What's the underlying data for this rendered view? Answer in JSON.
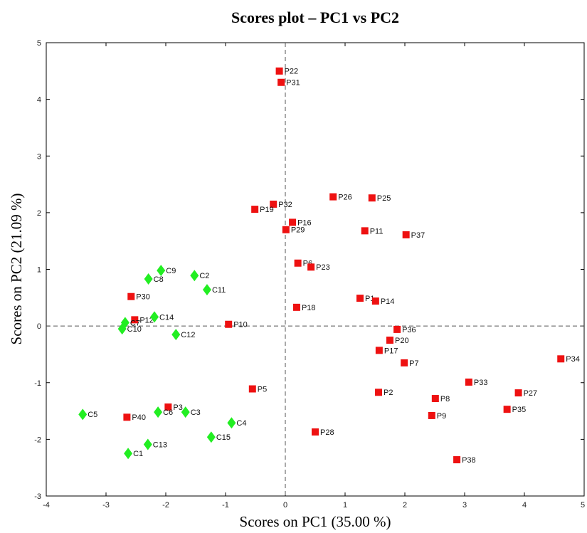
{
  "chart_data": {
    "type": "scatter",
    "title": "Scores plot – PC1 vs PC2",
    "x_label": "Scores on PC1 (35.00 %)",
    "y_label": "Scores on PC2 (21.09 %)",
    "xlim": [
      -4,
      5
    ],
    "ylim": [
      -3,
      5
    ],
    "xticks": [
      -4,
      -3,
      -2,
      -1,
      0,
      1,
      2,
      3,
      4,
      5
    ],
    "yticks": [
      -3,
      -2,
      -1,
      0,
      1,
      2,
      3,
      4,
      5
    ],
    "zero_lines": true,
    "series": [
      {
        "color": "#ee1111",
        "marker": "square",
        "labels": [
          "P22",
          "P31",
          "P32",
          "P19",
          "P26",
          "P25",
          "P16",
          "P29",
          "P11",
          "P37",
          "P6",
          "P23",
          "P1",
          "P14",
          "P18",
          "P10",
          "P36",
          "P20",
          "P17",
          "P7",
          "P34",
          "P33",
          "P27",
          "P2",
          "P8",
          "P35",
          "P9",
          "P38",
          "P28",
          "P5",
          "P3",
          "P40",
          "P30",
          "P12"
        ],
        "x": [
          -0.1,
          -0.07,
          -0.2,
          -0.51,
          0.8,
          1.45,
          0.12,
          0.01,
          1.33,
          2.02,
          0.21,
          0.43,
          1.25,
          1.51,
          0.19,
          -0.95,
          1.87,
          1.75,
          1.57,
          1.99,
          4.61,
          3.07,
          3.9,
          1.56,
          2.51,
          3.71,
          2.45,
          2.87,
          0.5,
          -0.55,
          -1.96,
          -2.65,
          -2.58,
          -2.52
        ],
        "y": [
          4.5,
          4.3,
          2.15,
          2.06,
          2.28,
          2.26,
          1.83,
          1.7,
          1.68,
          1.61,
          1.11,
          1.04,
          0.49,
          0.44,
          0.33,
          0.03,
          -0.06,
          -0.25,
          -0.43,
          -0.65,
          -0.58,
          -0.99,
          -1.18,
          -1.17,
          -1.28,
          -1.47,
          -1.58,
          -2.36,
          -1.87,
          -1.11,
          -1.43,
          -1.61,
          0.52,
          0.11
        ]
      },
      {
        "color": "#22ee22",
        "marker": "diamond",
        "labels": [
          "C9",
          "C8",
          "C2",
          "C11",
          "C14",
          "C7",
          "C10",
          "C12",
          "C5",
          "C6",
          "C3",
          "C4",
          "C15",
          "C13",
          "C1"
        ],
        "x": [
          -2.08,
          -2.29,
          -1.52,
          -1.31,
          -2.19,
          -2.68,
          -2.73,
          -1.83,
          -3.39,
          -2.13,
          -1.67,
          -0.9,
          -1.24,
          -2.3,
          -2.63
        ],
        "y": [
          0.98,
          0.83,
          0.89,
          0.64,
          0.16,
          0.06,
          -0.05,
          -0.15,
          -1.56,
          -1.52,
          -1.52,
          -1.71,
          -1.96,
          -2.09,
          -2.25
        ]
      }
    ]
  }
}
